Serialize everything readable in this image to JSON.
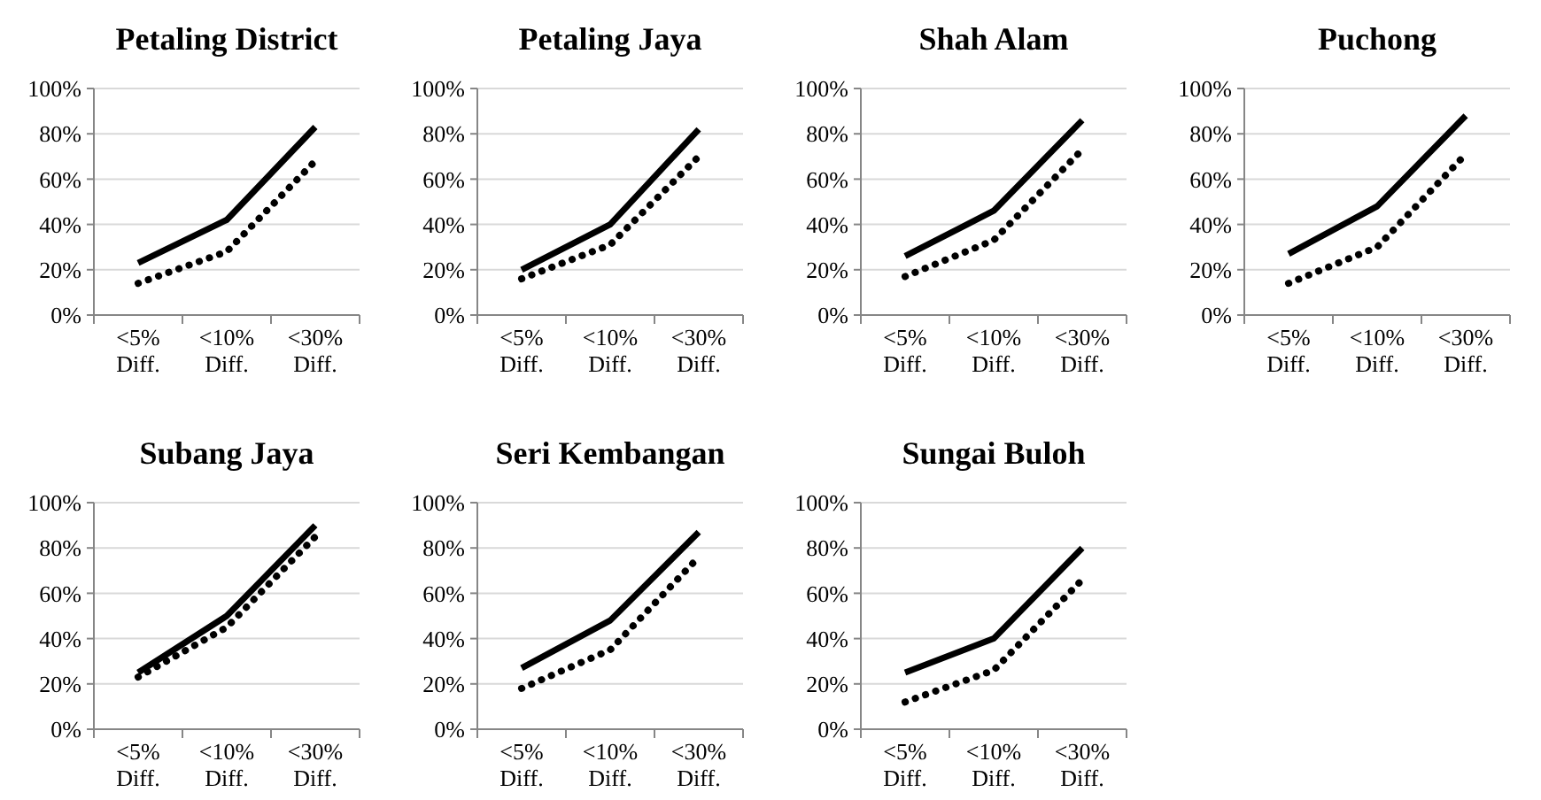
{
  "chart_data": [
    {
      "type": "line",
      "title": "Petaling District",
      "categories": [
        "<5% Diff.",
        "<10% Diff.",
        "<30% Diff."
      ],
      "series": [
        {
          "color": "#000000",
          "line_style": "solid",
          "values": [
            23,
            42,
            83
          ]
        },
        {
          "color": "#000000",
          "line_style": "dotted",
          "values": [
            14,
            28,
            68
          ]
        }
      ],
      "ylim": [
        0,
        100
      ],
      "yticks": [
        {
          "value": 0,
          "label": "0%"
        },
        {
          "value": 20,
          "label": "20%"
        },
        {
          "value": 40,
          "label": "40%"
        },
        {
          "value": 60,
          "label": "60%"
        },
        {
          "value": 80,
          "label": "80%"
        },
        {
          "value": 100,
          "label": "100%"
        }
      ],
      "grid": "y",
      "marker": "none"
    },
    {
      "type": "line",
      "title": "Petaling Jaya",
      "categories": [
        "<5% Diff.",
        "<10% Diff.",
        "<30% Diff."
      ],
      "series": [
        {
          "color": "#000000",
          "line_style": "solid",
          "values": [
            20,
            40,
            82
          ]
        },
        {
          "color": "#000000",
          "line_style": "dotted",
          "values": [
            16,
            31,
            70
          ]
        }
      ],
      "ylim": [
        0,
        100
      ],
      "yticks": [
        {
          "value": 0,
          "label": "0%"
        },
        {
          "value": 20,
          "label": "20%"
        },
        {
          "value": 40,
          "label": "40%"
        },
        {
          "value": 60,
          "label": "60%"
        },
        {
          "value": 80,
          "label": "80%"
        },
        {
          "value": 100,
          "label": "100%"
        }
      ],
      "grid": "y",
      "marker": "none"
    },
    {
      "type": "line",
      "title": "Shah Alam",
      "categories": [
        "<5% Diff.",
        "<10% Diff.",
        "<30% Diff."
      ],
      "series": [
        {
          "color": "#000000",
          "line_style": "solid",
          "values": [
            26,
            46,
            86
          ]
        },
        {
          "color": "#000000",
          "line_style": "dotted",
          "values": [
            17,
            33,
            73
          ]
        }
      ],
      "ylim": [
        0,
        100
      ],
      "yticks": [
        {
          "value": 0,
          "label": "0%"
        },
        {
          "value": 20,
          "label": "20%"
        },
        {
          "value": 40,
          "label": "40%"
        },
        {
          "value": 60,
          "label": "60%"
        },
        {
          "value": 80,
          "label": "80%"
        },
        {
          "value": 100,
          "label": "100%"
        }
      ],
      "grid": "y",
      "marker": "none"
    },
    {
      "type": "line",
      "title": "Puchong",
      "categories": [
        "<5% Diff.",
        "<10% Diff.",
        "<30% Diff."
      ],
      "series": [
        {
          "color": "#000000",
          "line_style": "solid",
          "values": [
            27,
            48,
            88
          ]
        },
        {
          "color": "#000000",
          "line_style": "dotted",
          "values": [
            14,
            30,
            71
          ]
        }
      ],
      "ylim": [
        0,
        100
      ],
      "yticks": [
        {
          "value": 0,
          "label": "0%"
        },
        {
          "value": 20,
          "label": "20%"
        },
        {
          "value": 40,
          "label": "40%"
        },
        {
          "value": 60,
          "label": "60%"
        },
        {
          "value": 80,
          "label": "80%"
        },
        {
          "value": 100,
          "label": "100%"
        }
      ],
      "grid": "y",
      "marker": "none"
    },
    {
      "type": "line",
      "title": "Subang Jaya",
      "categories": [
        "<5% Diff.",
        "<10% Diff.",
        "<30% Diff."
      ],
      "series": [
        {
          "color": "#000000",
          "line_style": "solid",
          "values": [
            25,
            50,
            90
          ]
        },
        {
          "color": "#000000",
          "line_style": "dotted",
          "values": [
            23,
            45,
            85
          ]
        }
      ],
      "ylim": [
        0,
        100
      ],
      "yticks": [
        {
          "value": 0,
          "label": "0%"
        },
        {
          "value": 20,
          "label": "20%"
        },
        {
          "value": 40,
          "label": "40%"
        },
        {
          "value": 60,
          "label": "60%"
        },
        {
          "value": 80,
          "label": "80%"
        },
        {
          "value": 100,
          "label": "100%"
        }
      ],
      "grid": "y",
      "marker": "none"
    },
    {
      "type": "line",
      "title": "Seri Kembangan",
      "categories": [
        "<5% Diff.",
        "<10% Diff.",
        "<30% Diff."
      ],
      "series": [
        {
          "color": "#000000",
          "line_style": "solid",
          "values": [
            27,
            48,
            87
          ]
        },
        {
          "color": "#000000",
          "line_style": "dotted",
          "values": [
            18,
            35,
            76
          ]
        }
      ],
      "ylim": [
        0,
        100
      ],
      "yticks": [
        {
          "value": 0,
          "label": "0%"
        },
        {
          "value": 20,
          "label": "20%"
        },
        {
          "value": 40,
          "label": "40%"
        },
        {
          "value": 60,
          "label": "60%"
        },
        {
          "value": 80,
          "label": "80%"
        },
        {
          "value": 100,
          "label": "100%"
        }
      ],
      "grid": "y",
      "marker": "none"
    },
    {
      "type": "line",
      "title": "Sungai Buloh",
      "categories": [
        "<5% Diff.",
        "<10% Diff.",
        "<30% Diff."
      ],
      "series": [
        {
          "color": "#000000",
          "line_style": "solid",
          "values": [
            25,
            40,
            80
          ]
        },
        {
          "color": "#000000",
          "line_style": "dotted",
          "values": [
            12,
            26,
            66
          ]
        }
      ],
      "ylim": [
        0,
        100
      ],
      "yticks": [
        {
          "value": 0,
          "label": "0%"
        },
        {
          "value": 20,
          "label": "20%"
        },
        {
          "value": 40,
          "label": "40%"
        },
        {
          "value": 60,
          "label": "60%"
        },
        {
          "value": 80,
          "label": "80%"
        },
        {
          "value": 100,
          "label": "100%"
        }
      ],
      "grid": "y",
      "marker": "none"
    }
  ]
}
